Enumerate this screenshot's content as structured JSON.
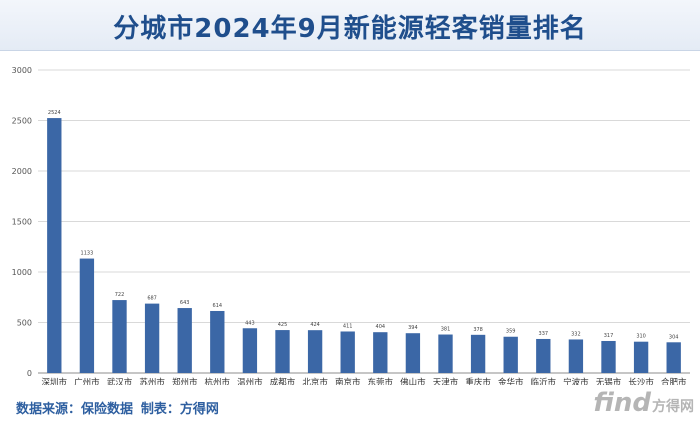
{
  "title": "分城市2024年9月新能源轻客销量排名",
  "source_text": "数据来源：保险数据 制表：方得网",
  "watermark": {
    "find": "find",
    "cn": "方得网"
  },
  "colors": {
    "bar": "#3b67a6",
    "title": "#1f4e8c",
    "grid": "#d9d9d9"
  },
  "chart_data": {
    "type": "bar",
    "title": "分城市2024年9月新能源轻客销量排名",
    "xlabel": "",
    "ylabel": "",
    "ylim": [
      0,
      3000
    ],
    "yticks": [
      0,
      500,
      1000,
      1500,
      2000,
      2500,
      3000
    ],
    "grid": true,
    "categories": [
      "深圳市",
      "广州市",
      "武汉市",
      "苏州市",
      "郑州市",
      "杭州市",
      "温州市",
      "成都市",
      "北京市",
      "南京市",
      "东莞市",
      "佛山市",
      "天津市",
      "重庆市",
      "金华市",
      "临沂市",
      "宁波市",
      "无锡市",
      "长沙市",
      "合肥市"
    ],
    "values": [
      2524,
      1133,
      722,
      687,
      643,
      614,
      443,
      425,
      424,
      411,
      404,
      394,
      381,
      378,
      359,
      337,
      332,
      317,
      310,
      304
    ]
  }
}
